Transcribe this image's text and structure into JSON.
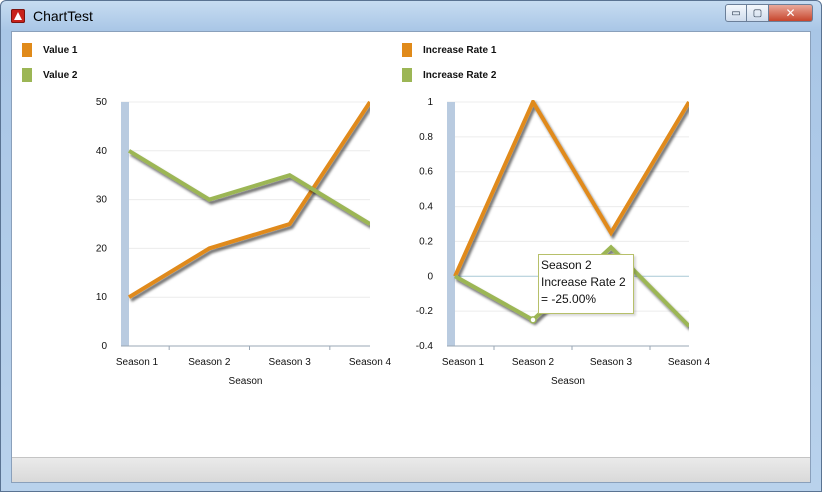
{
  "window": {
    "title": "ChartTest",
    "buttons": {
      "minimize": "▭",
      "maximize": "▢",
      "close": "✕"
    }
  },
  "colors": {
    "series1": "#e08a1a",
    "series2": "#9cb655",
    "axis_band": "#b9cbe0"
  },
  "tooltip": {
    "line1": "Season 2",
    "line2": "Increase Rate 2",
    "line3": " = -25.00%"
  },
  "chart_data": [
    {
      "type": "line",
      "categories": [
        "Season 1",
        "Season 2",
        "Season 3",
        "Season 4"
      ],
      "series": [
        {
          "name": "Value 1",
          "values": [
            10,
            20,
            25,
            50
          ]
        },
        {
          "name": "Value 2",
          "values": [
            40,
            30,
            35,
            25
          ]
        }
      ],
      "xlabel": "Season",
      "ylabel": "",
      "ylim": [
        0,
        50
      ],
      "yticks": [
        "0",
        "10",
        "20",
        "30",
        "40",
        "50"
      ],
      "legend": "top-left",
      "grid": true
    },
    {
      "type": "line",
      "categories": [
        "Season 1",
        "Season 2",
        "Season 3",
        "Season 4"
      ],
      "series": [
        {
          "name": "Increase Rate 1",
          "values": [
            0,
            1,
            0.25,
            1
          ]
        },
        {
          "name": "Increase Rate 2",
          "values": [
            0,
            -0.25,
            0.1667,
            -0.2857
          ]
        }
      ],
      "xlabel": "Season",
      "ylabel": "",
      "ylim": [
        -0.4,
        1
      ],
      "yticks": [
        "-0.4",
        "-0.2",
        "0",
        "0.2",
        "0.4",
        "0.6",
        "0.8",
        "1"
      ],
      "legend": "top-left",
      "grid": true
    }
  ]
}
